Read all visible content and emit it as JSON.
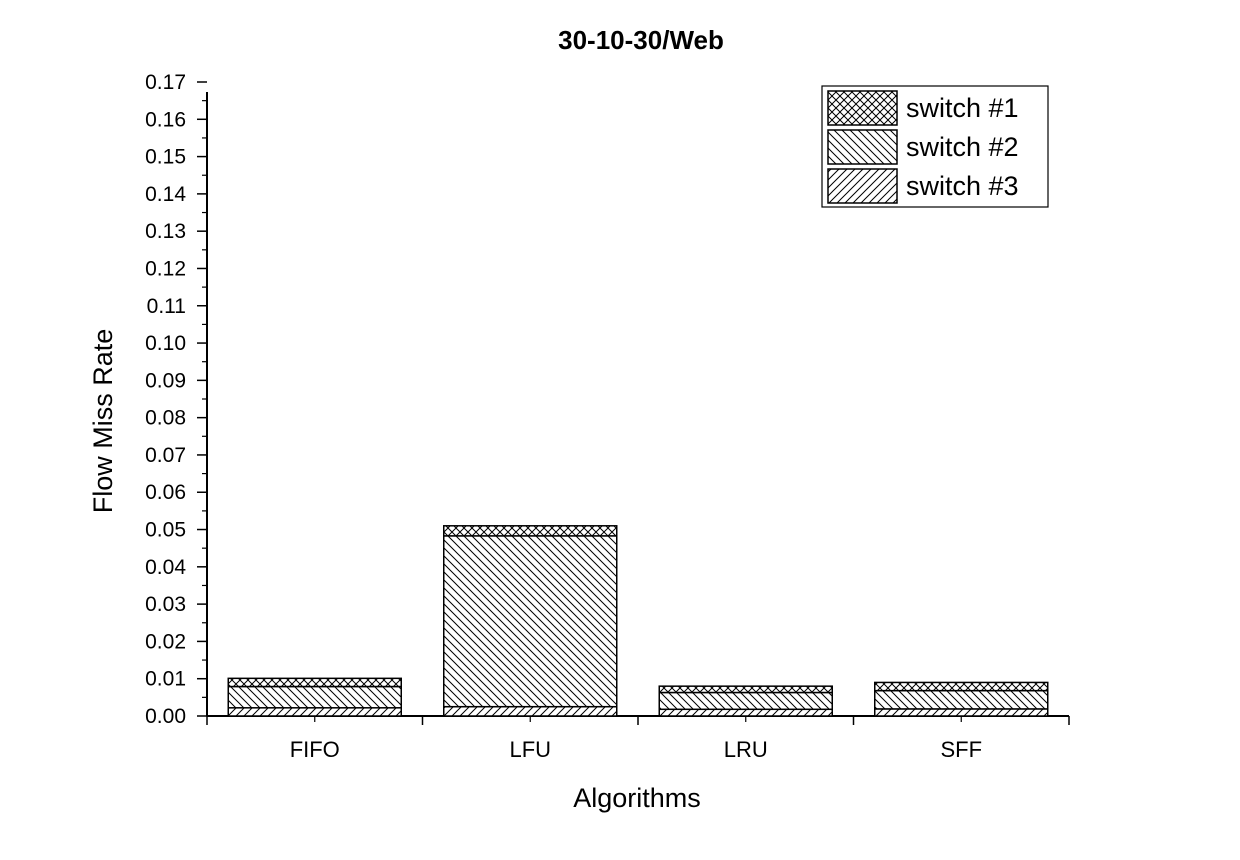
{
  "chart_data": {
    "type": "bar",
    "stacked": true,
    "title": "30-10-30/Web",
    "xlabel": "Algorithms",
    "ylabel": "Flow Miss Rate",
    "categories": [
      "FIFO",
      "LFU",
      "LRU",
      "SFF"
    ],
    "ylim": [
      0,
      0.17
    ],
    "yticks": [
      "0.00",
      "0.01",
      "0.02",
      "0.03",
      "0.04",
      "0.05",
      "0.06",
      "0.07",
      "0.08",
      "0.09",
      "0.10",
      "0.11",
      "0.12",
      "0.13",
      "0.14",
      "0.15",
      "0.16",
      "0.17"
    ],
    "grid": false,
    "legend_position": "top-right",
    "series": [
      {
        "name": "switch #3",
        "pattern": "diagonal-forward",
        "values": [
          0.0022,
          0.0025,
          0.0018,
          0.0019
        ]
      },
      {
        "name": "switch #2",
        "pattern": "diagonal-back",
        "values": [
          0.0057,
          0.0458,
          0.0045,
          0.0049
        ]
      },
      {
        "name": "switch #1",
        "pattern": "crosshatch",
        "values": [
          0.0022,
          0.0027,
          0.0017,
          0.0022
        ]
      }
    ],
    "legend_order": [
      "switch #1",
      "switch #2",
      "switch #3"
    ],
    "colors": {
      "stroke": "#000000",
      "fill": "#ffffff"
    }
  }
}
